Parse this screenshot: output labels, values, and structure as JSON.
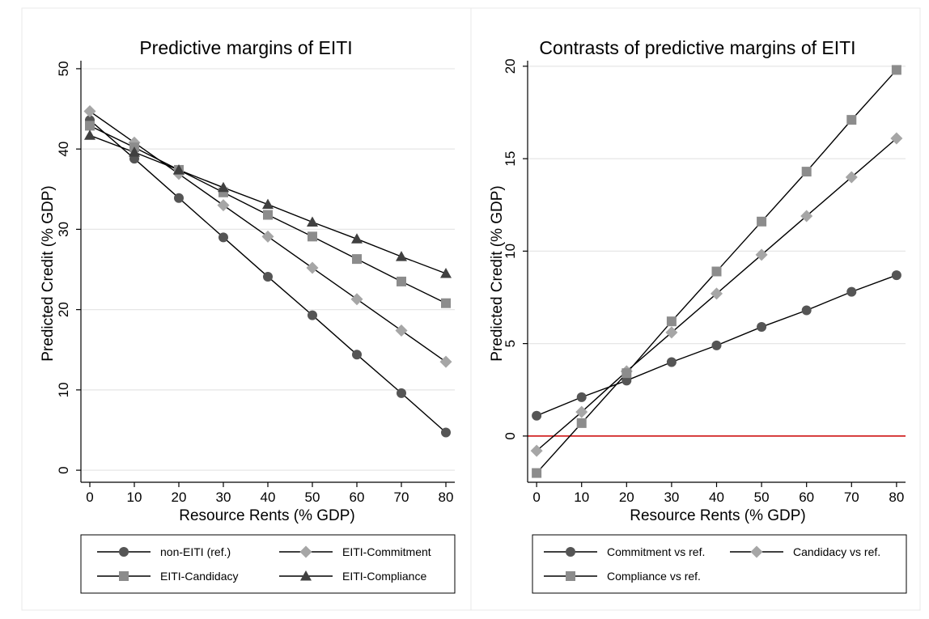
{
  "chart_data": [
    {
      "type": "line",
      "title": "Predictive margins of EITI",
      "xlabel": "Resource Rents (% GDP)",
      "ylabel": "Predicted Credit (% GDP)",
      "x": [
        0,
        10,
        20,
        30,
        40,
        50,
        60,
        70,
        80
      ],
      "xlim": [
        -2,
        82
      ],
      "ylim": [
        -1.5,
        51
      ],
      "xticks": [
        0,
        10,
        20,
        30,
        40,
        50,
        60,
        70,
        80
      ],
      "yticks": [
        0,
        10,
        20,
        30,
        40,
        50
      ],
      "grid": true,
      "legend_position": "bottom",
      "series": [
        {
          "name": "non-EITI (ref.)",
          "marker": "circle",
          "color": "#555555",
          "values": [
            43.6,
            38.8,
            33.9,
            29.0,
            24.1,
            19.3,
            14.4,
            9.6,
            4.7
          ]
        },
        {
          "name": "EITI-Commitment",
          "marker": "diamond",
          "color": "#a6a6a6",
          "values": [
            44.7,
            40.8,
            36.9,
            33.0,
            29.1,
            25.2,
            21.3,
            17.4,
            13.5
          ]
        },
        {
          "name": "EITI-Candidacy",
          "marker": "square",
          "color": "#8c8c8c",
          "values": [
            42.9,
            40.2,
            37.4,
            34.6,
            31.8,
            29.1,
            26.3,
            23.5,
            20.8
          ]
        },
        {
          "name": "EITI-Compliance",
          "marker": "triangle",
          "color": "#404040",
          "values": [
            41.7,
            39.6,
            37.4,
            35.2,
            33.1,
            30.9,
            28.8,
            26.6,
            24.5
          ]
        }
      ]
    },
    {
      "type": "line",
      "title": "Contrasts of predictive margins of EITI",
      "xlabel": "Resource Rents (% GDP)",
      "ylabel": "Predicted Credit (% GDP)",
      "x": [
        0,
        10,
        20,
        30,
        40,
        50,
        60,
        70,
        80
      ],
      "xlim": [
        -2,
        82
      ],
      "ylim": [
        -2.5,
        20.3
      ],
      "xticks": [
        0,
        10,
        20,
        30,
        40,
        50,
        60,
        70,
        80
      ],
      "yticks": [
        0,
        5,
        10,
        15,
        20
      ],
      "grid": true,
      "reference_line": {
        "y": 0,
        "color": "#cc0000"
      },
      "legend_position": "bottom",
      "series": [
        {
          "name": "Commitment vs ref.",
          "marker": "circle",
          "color": "#555555",
          "values": [
            1.1,
            2.1,
            3.0,
            4.0,
            4.9,
            5.9,
            6.8,
            7.8,
            8.7
          ]
        },
        {
          "name": "Candidacy vs ref.",
          "marker": "diamond",
          "color": "#a6a6a6",
          "values": [
            -0.8,
            1.3,
            3.5,
            5.6,
            7.7,
            9.8,
            11.9,
            14.0,
            16.1
          ]
        },
        {
          "name": "Compliance vs ref.",
          "marker": "square",
          "color": "#8c8c8c",
          "values": [
            -2.0,
            0.7,
            3.4,
            6.2,
            8.9,
            11.6,
            14.3,
            17.1,
            19.8
          ]
        }
      ]
    }
  ]
}
